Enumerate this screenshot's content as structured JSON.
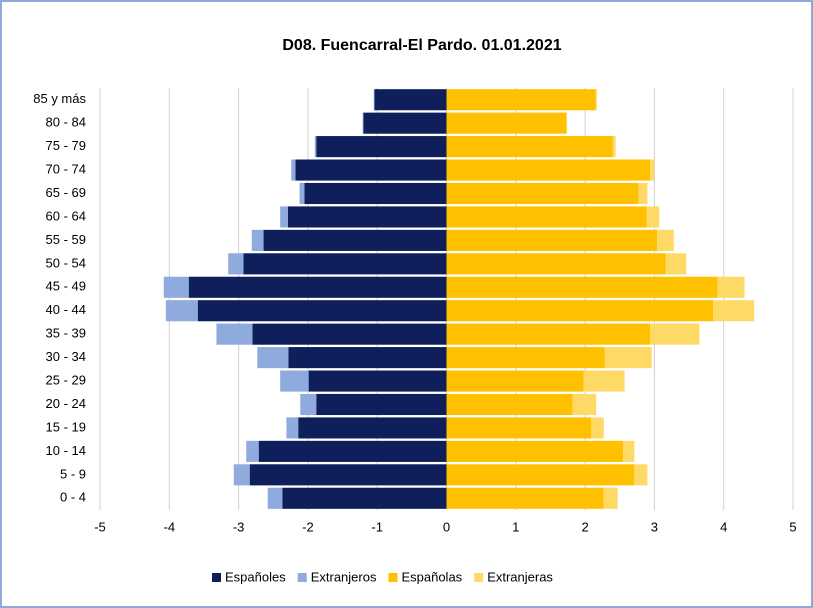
{
  "chart_data": {
    "type": "pyramid",
    "title": "D08. Fuencarral-El Pardo. 01.01.2021",
    "categories": [
      "0 - 4",
      "5 - 9",
      "10 - 14",
      "15 - 19",
      "20 - 24",
      "25 - 29",
      "30 - 34",
      "35 - 39",
      "40 - 44",
      "45 - 49",
      "50 - 54",
      "55 - 59",
      "60 - 64",
      "65 - 69",
      "70 - 74",
      "75 - 79",
      "80 - 84",
      "85 y más"
    ],
    "series": [
      {
        "name": "Españoles",
        "color": "#0f1f5c",
        "values": [
          -2.37,
          -2.84,
          -2.71,
          -2.14,
          -1.88,
          -1.99,
          -2.28,
          -2.8,
          -3.59,
          -3.72,
          -2.93,
          -2.64,
          -2.29,
          -2.05,
          -2.18,
          -1.88,
          -1.2,
          -1.04
        ]
      },
      {
        "name": "Extranjeros",
        "color": "#8faadc",
        "values": [
          -0.21,
          -0.23,
          -0.18,
          -0.17,
          -0.23,
          -0.41,
          -0.45,
          -0.52,
          -0.46,
          -0.36,
          -0.22,
          -0.17,
          -0.11,
          -0.07,
          -0.06,
          -0.02,
          -0.01,
          -0.01
        ]
      },
      {
        "name": "Españolas",
        "color": "#ffc000",
        "values": [
          2.27,
          2.71,
          2.55,
          2.09,
          1.82,
          1.98,
          2.28,
          2.94,
          3.85,
          3.91,
          3.16,
          3.04,
          2.89,
          2.77,
          2.94,
          2.4,
          1.73,
          2.15
        ]
      },
      {
        "name": "Extranjeras",
        "color": "#ffd966",
        "values": [
          0.2,
          0.19,
          0.16,
          0.18,
          0.34,
          0.59,
          0.68,
          0.71,
          0.59,
          0.39,
          0.3,
          0.24,
          0.18,
          0.13,
          0.06,
          0.04,
          0.01,
          0.02
        ]
      }
    ],
    "xlim": [
      -5,
      5
    ],
    "xticks": [
      -5,
      -4,
      -3,
      -2,
      -1,
      0,
      1,
      2,
      3,
      4,
      5
    ],
    "grid": true,
    "legend": "bottom"
  }
}
